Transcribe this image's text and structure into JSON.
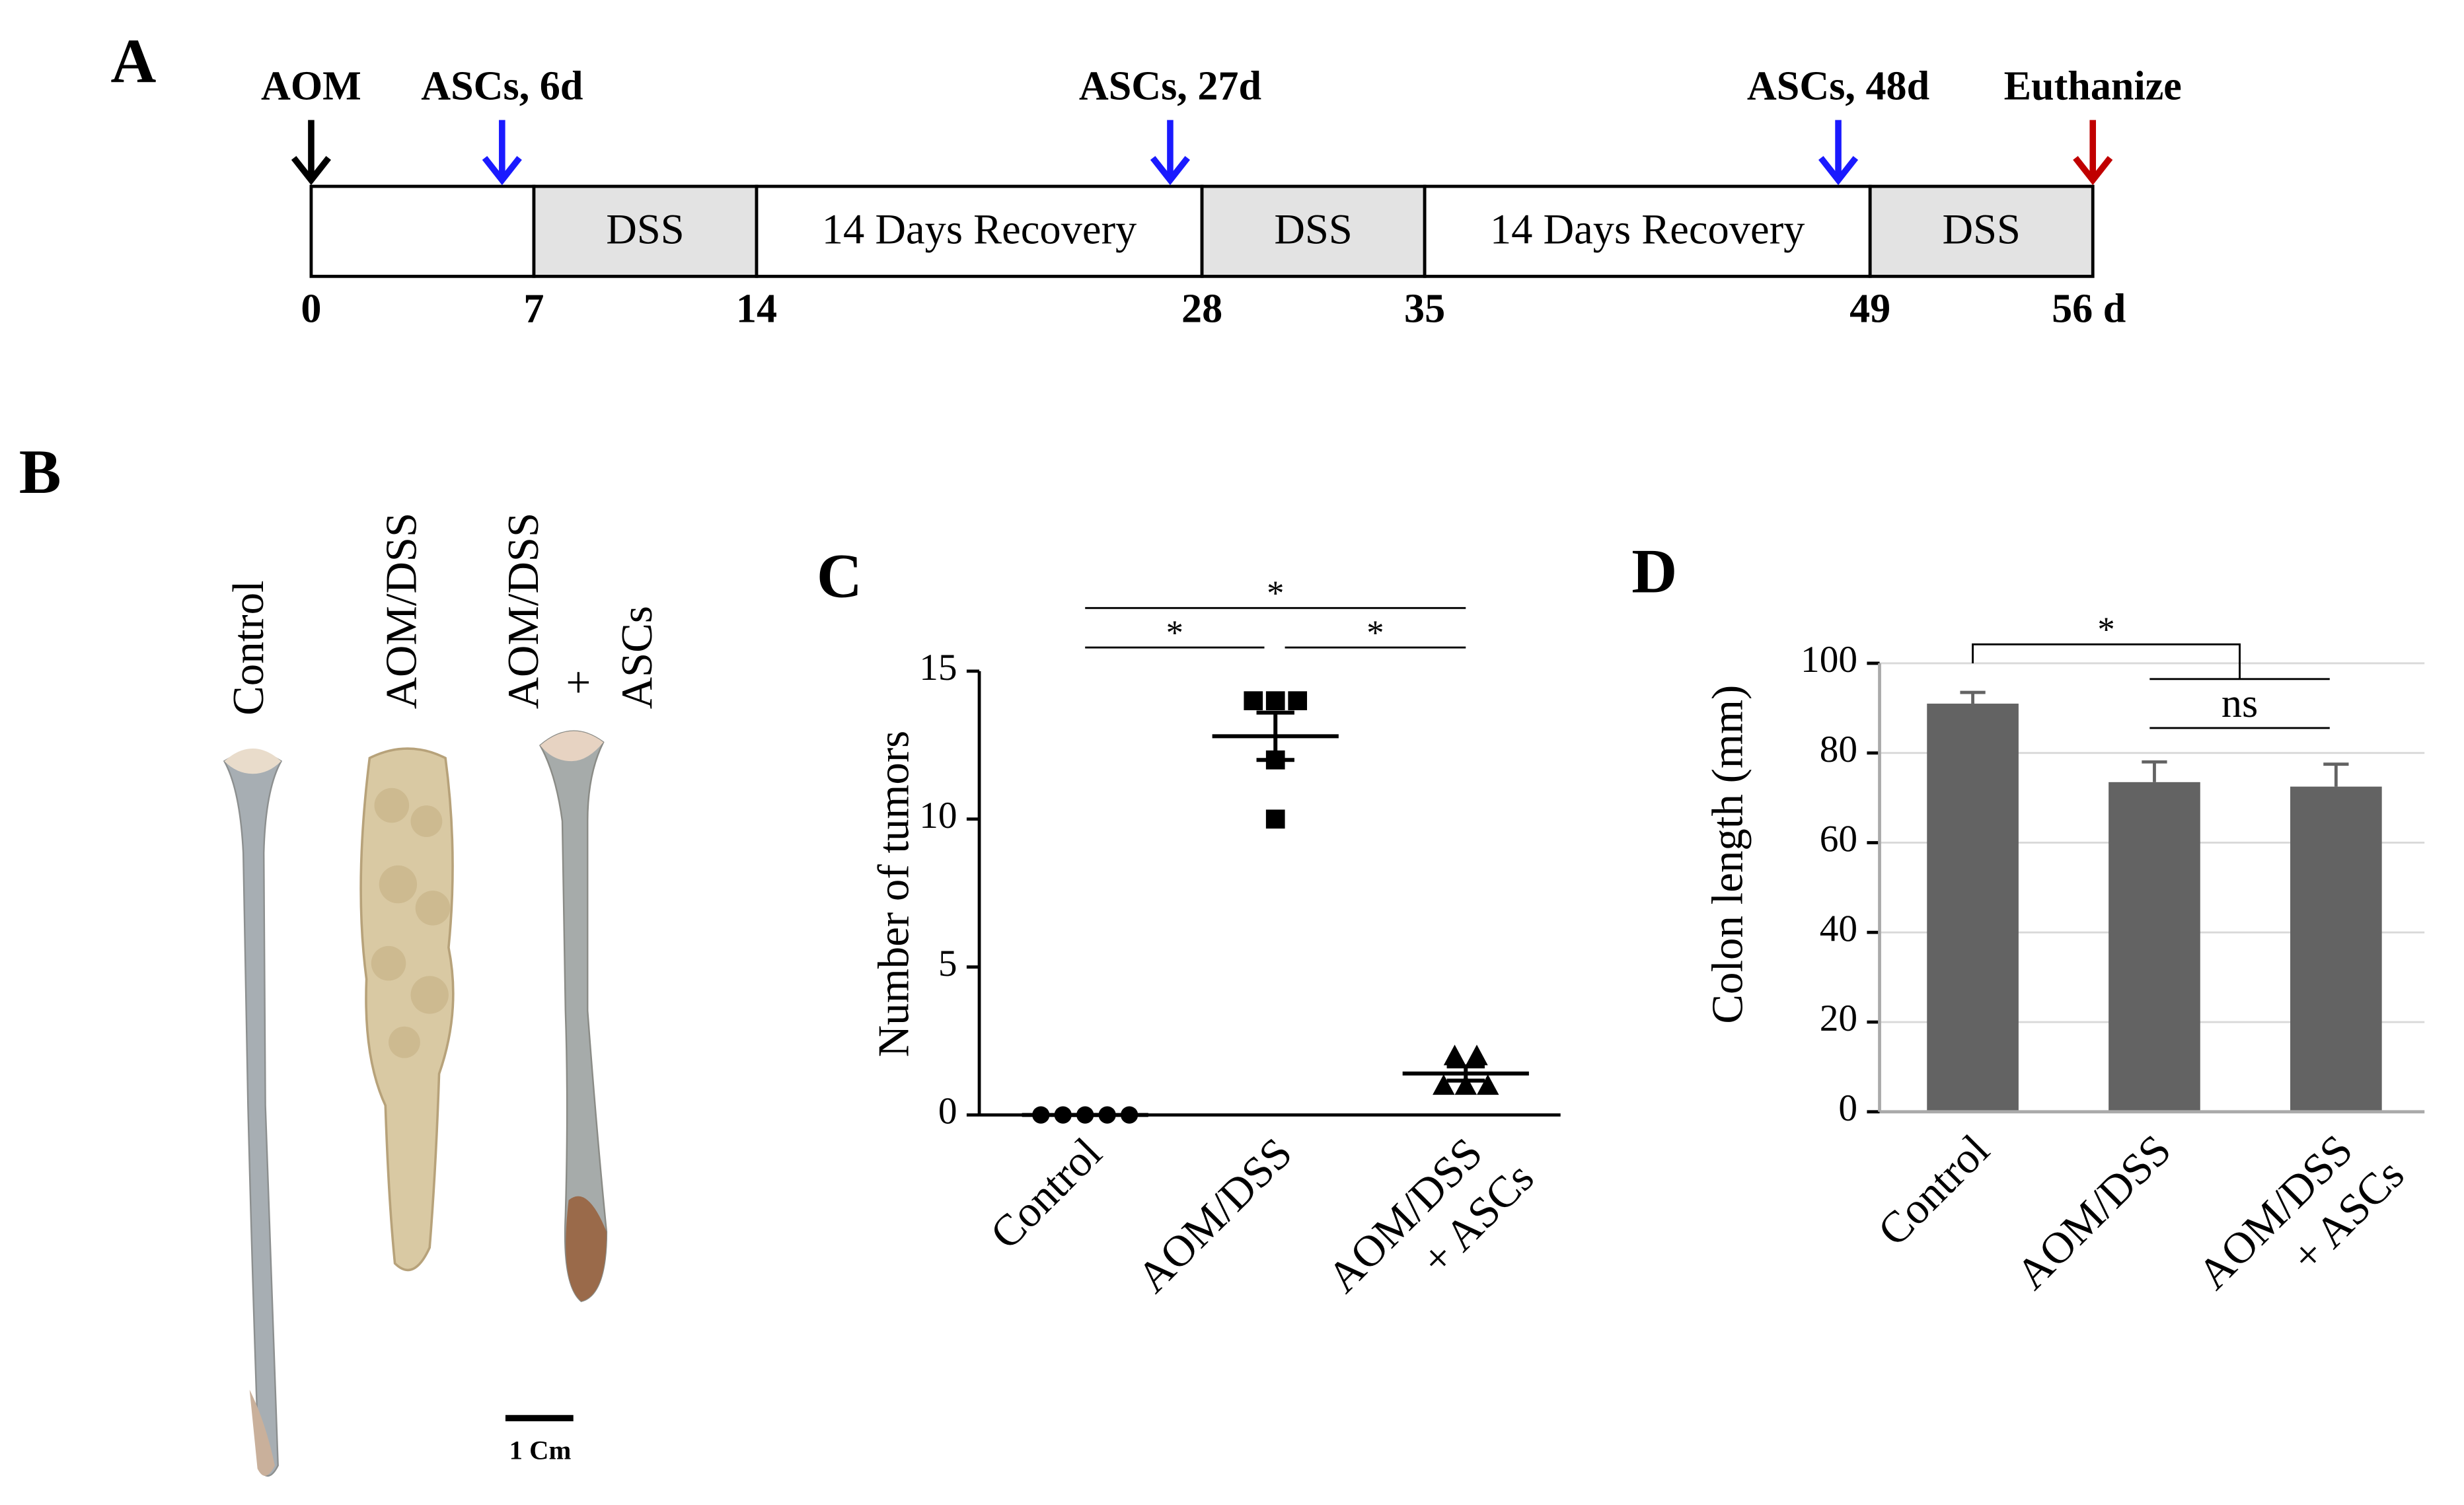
{
  "panel_labels": [
    "A",
    "B",
    "C",
    "D"
  ],
  "timeline": {
    "xlim": [
      0,
      56
    ],
    "ticks": [
      0,
      7,
      14,
      28,
      35,
      49,
      {
        "value": 56,
        "label": "56 d"
      }
    ],
    "segments": [
      {
        "start": 0,
        "end": 7,
        "color": "#ffffff"
      },
      {
        "start": 7,
        "end": 14,
        "label": "DSS",
        "color": "#e3e3e3"
      },
      {
        "start": 14,
        "end": 28,
        "label": "14 Days Recovery",
        "color": "#ffffff"
      },
      {
        "start": 28,
        "end": 35,
        "label": "DSS",
        "color": "#e3e3e3"
      },
      {
        "start": 35,
        "end": 49,
        "label": "14 Days Recovery",
        "color": "#ffffff"
      },
      {
        "start": 49,
        "end": 56,
        "label": "DSS",
        "color": "#e3e3e3"
      }
    ],
    "events": [
      {
        "day": 0,
        "label": "AOM",
        "color": "#000000"
      },
      {
        "day": 6,
        "label": "ASCs, 6d",
        "color": "#1a1aff"
      },
      {
        "day": 27,
        "label": "ASCs, 27d",
        "color": "#1a1aff"
      },
      {
        "day": 48,
        "label": "ASCs, 48d",
        "color": "#1a1aff"
      },
      {
        "day": 56,
        "label": "Euthanize",
        "color": "#c00000"
      }
    ]
  },
  "photo": {
    "labels": [
      [
        "Control"
      ],
      [
        "AOM/DSS"
      ],
      [
        "AOM/DSS",
        "+",
        "ASCs"
      ]
    ],
    "scale_bar": "1 Cm"
  },
  "chart_data": [
    {
      "type": "dot",
      "ylabel": "Number of tumors",
      "categories": [
        [
          "Control"
        ],
        [
          "AOM/DSS"
        ],
        [
          "AOM/DSS",
          "+ ASCs"
        ]
      ],
      "values": [
        [
          0,
          0,
          0,
          0,
          0
        ],
        [
          14,
          14,
          14,
          12,
          10
        ],
        [
          2,
          2,
          1,
          1,
          1
        ]
      ],
      "markers": [
        "circle",
        "square",
        "triangle"
      ],
      "means": [
        0,
        12.8,
        1.4
      ],
      "errors": [
        0,
        0.8,
        0.24
      ],
      "color": "#000000",
      "ylim": [
        0,
        15
      ],
      "yticks": [
        0,
        5,
        10,
        15
      ],
      "annotations": [
        {
          "label": "*",
          "from": 0,
          "to": 2
        },
        {
          "label": "*",
          "from": 0,
          "to": 1
        },
        {
          "label": "*",
          "from": 1,
          "to": 2
        }
      ]
    },
    {
      "type": "bar",
      "ylabel": "Colon length (mm)",
      "categories": [
        [
          "Control"
        ],
        [
          "AOM/DSS"
        ],
        [
          "AOM/DSS",
          "+ ASCs"
        ]
      ],
      "values": [
        91,
        73.5,
        72.5
      ],
      "errors": [
        2.5,
        4.5,
        5
      ],
      "color": "#636363",
      "ylim": [
        0,
        100
      ],
      "yticks": [
        0,
        20,
        40,
        60,
        80,
        100
      ],
      "grid": true,
      "annotations": [
        {
          "label": "*",
          "from": 0,
          "to": [
            1,
            2
          ]
        },
        {
          "label": "ns",
          "from": 1,
          "to": 2
        }
      ]
    }
  ]
}
